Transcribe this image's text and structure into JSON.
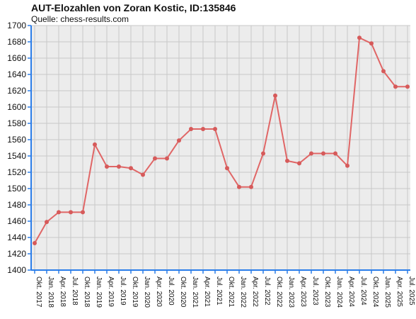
{
  "title": "AUT-Elozahlen von Zoran Kostic, ID:135846",
  "subtitle": "Quelle: chess-results.com",
  "colors": {
    "background": "#ececec",
    "grid": "#c8c8c8",
    "axis": "#2b7de9",
    "line": "#e06666",
    "marker": "#d65a5a"
  },
  "chart_data": {
    "type": "line",
    "title": "AUT-Elozahlen von Zoran Kostic, ID:135846",
    "subtitle": "Quelle: chess-results.com",
    "xlabel": "",
    "ylabel": "",
    "ylim": [
      1400,
      1700
    ],
    "yticks": [
      1400,
      1420,
      1440,
      1460,
      1480,
      1500,
      1520,
      1540,
      1560,
      1580,
      1600,
      1620,
      1640,
      1660,
      1680,
      1700
    ],
    "grid": true,
    "legend": "none",
    "categories": [
      "Okt. 2017",
      "Jan. 2018",
      "Apr. 2018",
      "Jul. 2018",
      "Okt. 2018",
      "Jan. 2019",
      "Apr. 2019",
      "Jul. 2019",
      "Okt. 2019",
      "Jan. 2020",
      "Apr. 2020",
      "Jul. 2020",
      "Okt. 2020",
      "Jan. 2021",
      "Apr. 2021",
      "Jul. 2021",
      "Okt. 2021",
      "Jan. 2022",
      "Apr. 2022",
      "Jul. 2022",
      "Okt. 2022",
      "Jan. 2023",
      "Apr. 2023",
      "Jul. 2023",
      "Okt. 2023",
      "Jan. 2024",
      "Apr. 2024",
      "Jul. 2024",
      "Okt. 2024",
      "Jan. 2025",
      "Apr. 2025",
      "Jul. 2025"
    ],
    "values": [
      1433,
      1459,
      1471,
      1471,
      1471,
      1554,
      1527,
      1527,
      1525,
      1517,
      1537,
      1537,
      1559,
      1573,
      1573,
      1573,
      1525,
      1502,
      1502,
      1543,
      1614,
      1534,
      1531,
      1543,
      1543,
      1543,
      1528,
      1685,
      1678,
      1644,
      1625,
      1625
    ]
  }
}
